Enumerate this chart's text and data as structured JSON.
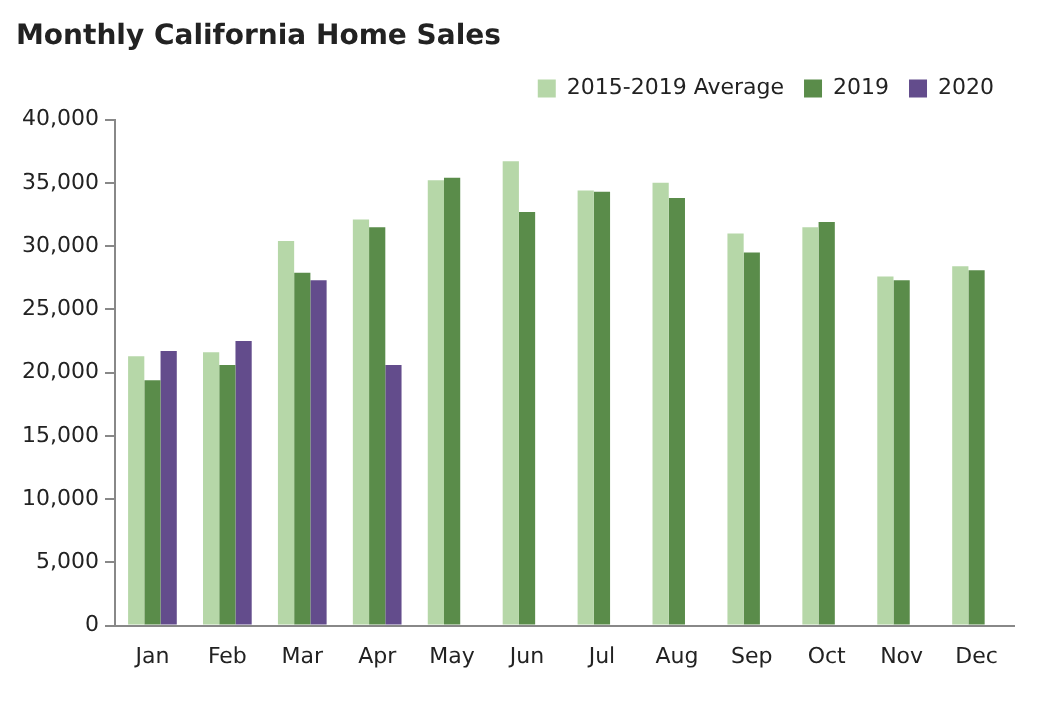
{
  "chart_data": {
    "type": "bar",
    "title": "Monthly California Home Sales",
    "categories": [
      "Jan",
      "Feb",
      "Mar",
      "Apr",
      "May",
      "Jun",
      "Jul",
      "Aug",
      "Sep",
      "Oct",
      "Nov",
      "Dec"
    ],
    "series": [
      {
        "name": "2015-2019 Average",
        "color": "#b6d7a8",
        "values": [
          21300,
          21600,
          30400,
          32100,
          35200,
          36700,
          34400,
          35000,
          31000,
          31500,
          27600,
          28400
        ]
      },
      {
        "name": "2019",
        "color": "#5a8c4a",
        "values": [
          19400,
          20600,
          27900,
          31500,
          35400,
          32700,
          34300,
          33800,
          29500,
          31900,
          27300,
          28100
        ]
      },
      {
        "name": "2020",
        "color": "#634c8c",
        "values": [
          21700,
          22500,
          27300,
          20600,
          null,
          null,
          null,
          null,
          null,
          null,
          null,
          null
        ]
      }
    ],
    "ylim": [
      0,
      40000
    ],
    "yticks": [
      0,
      {
        "value": 5000,
        "label": "5,000"
      },
      {
        "value": 10000,
        "label": "10,000"
      },
      {
        "value": 15000,
        "label": "15,000"
      },
      {
        "value": 20000,
        "label": "20,000"
      },
      {
        "value": 25000,
        "label": "25,000"
      },
      {
        "value": 30000,
        "label": "30,000"
      },
      {
        "value": 35000,
        "label": "35,000"
      },
      {
        "value": 40000,
        "label": "40,000"
      }
    ],
    "grid": false,
    "legend": "top right"
  }
}
